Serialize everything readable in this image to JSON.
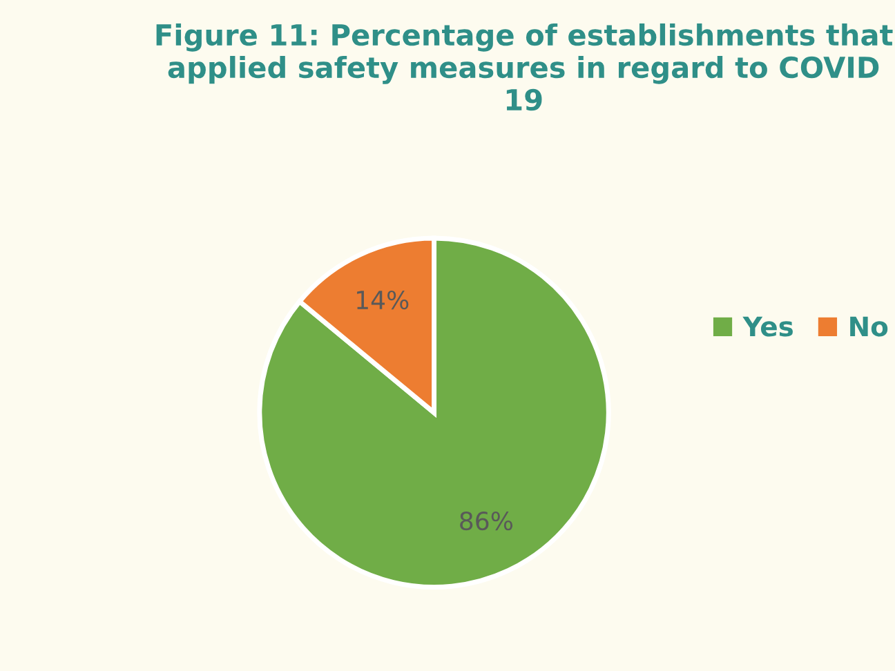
{
  "chart_data": {
    "type": "pie",
    "title": "Figure 11: Percentage of establishments that applied safety measures in regard to COVID 19",
    "categories": [
      "Yes",
      "No"
    ],
    "values": [
      86,
      14
    ],
    "colors": [
      "#70ad47",
      "#ed7d31"
    ],
    "value_labels": [
      "86%",
      "14%"
    ],
    "legend": "right"
  }
}
